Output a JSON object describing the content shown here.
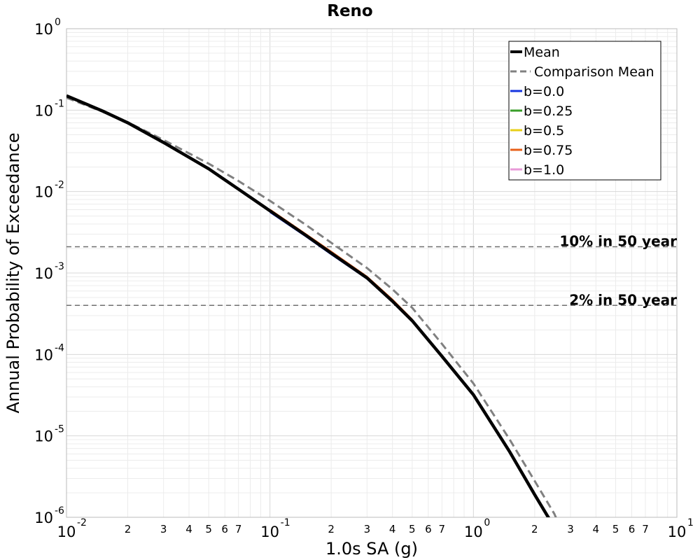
{
  "chart_data": {
    "type": "line",
    "title": "Reno",
    "xlabel": "1.0s SA (g)",
    "ylabel": "Annual Probability of Exceedance",
    "xscale": "log",
    "yscale": "log",
    "xlim": [
      0.01,
      10
    ],
    "ylim": [
      1e-06,
      1
    ],
    "grid": true,
    "legend_position": "top-right",
    "x_major_ticks": [
      {
        "value": 0.01,
        "base": "10",
        "exp": "-2"
      },
      {
        "value": 0.1,
        "base": "10",
        "exp": "-1"
      },
      {
        "value": 1,
        "base": "10",
        "exp": "0"
      },
      {
        "value": 10,
        "base": "10",
        "exp": "1"
      }
    ],
    "x_minor_tick_labels": [
      "2",
      "3",
      "4",
      "5",
      "6",
      "7"
    ],
    "y_major_ticks": [
      {
        "value": 1,
        "base": "10",
        "exp": "0"
      },
      {
        "value": 0.1,
        "base": "10",
        "exp": "-1"
      },
      {
        "value": 0.01,
        "base": "10",
        "exp": "-2"
      },
      {
        "value": 0.001,
        "base": "10",
        "exp": "-3"
      },
      {
        "value": 0.0001,
        "base": "10",
        "exp": "-4"
      },
      {
        "value": 1e-05,
        "base": "10",
        "exp": "-5"
      },
      {
        "value": 1e-06,
        "base": "10",
        "exp": "-6"
      }
    ],
    "series": [
      {
        "name": "Mean",
        "color": "#000000",
        "dash": "solid",
        "x": [
          0.01,
          0.015,
          0.02,
          0.03,
          0.05,
          0.07,
          0.1,
          0.15,
          0.2,
          0.3,
          0.4,
          0.5,
          0.7,
          1.0,
          1.5,
          2.0,
          2.5,
          2.6
        ],
        "y": [
          0.15,
          0.098,
          0.07,
          0.04,
          0.019,
          0.0107,
          0.0058,
          0.0029,
          0.00175,
          0.00087,
          0.00045,
          0.00026,
          9.5e-05,
          3.2e-05,
          6.5e-06,
          1.9e-06,
          7.5e-07,
          6e-07
        ]
      },
      {
        "name": "Comparison Mean",
        "color": "#808080",
        "dash": "dashed",
        "x": [
          0.01,
          0.015,
          0.02,
          0.03,
          0.05,
          0.07,
          0.1,
          0.15,
          0.2,
          0.3,
          0.4,
          0.5,
          0.7,
          1.0,
          1.5,
          2.0,
          2.5,
          2.7
        ],
        "y": [
          0.142,
          0.096,
          0.071,
          0.043,
          0.022,
          0.0135,
          0.0077,
          0.0039,
          0.00235,
          0.00115,
          0.00063,
          0.000375,
          0.000135,
          4.4e-05,
          9.2e-06,
          2.8e-06,
          1.1e-06,
          7e-07
        ]
      },
      {
        "name": "b=0.0",
        "color": "#1535e0",
        "dash": "solid",
        "x": [
          0.1,
          0.15,
          0.2,
          0.3,
          0.4,
          0.5
        ],
        "y": [
          0.0056,
          0.00282,
          0.0017,
          0.00085,
          0.00044,
          0.000255
        ]
      },
      {
        "name": "b=0.25",
        "color": "#3a9e2a",
        "dash": "solid",
        "x": [],
        "y": []
      },
      {
        "name": "b=0.5",
        "color": "#e8cf1a",
        "dash": "solid",
        "x": [],
        "y": []
      },
      {
        "name": "b=0.75",
        "color": "#e8601a",
        "dash": "solid",
        "x": [
          0.1,
          0.15,
          0.2,
          0.3,
          0.4,
          0.5
        ],
        "y": [
          0.006,
          0.003,
          0.00183,
          0.0009,
          0.00047,
          0.000268
        ]
      },
      {
        "name": "b=1.0",
        "color": "#e89ad8",
        "dash": "solid",
        "x": [],
        "y": []
      }
    ],
    "reference_lines": [
      {
        "label": "10% in 50 year",
        "y": 0.0021
      },
      {
        "label": "2% in 50 year",
        "y": 0.0004
      }
    ]
  }
}
